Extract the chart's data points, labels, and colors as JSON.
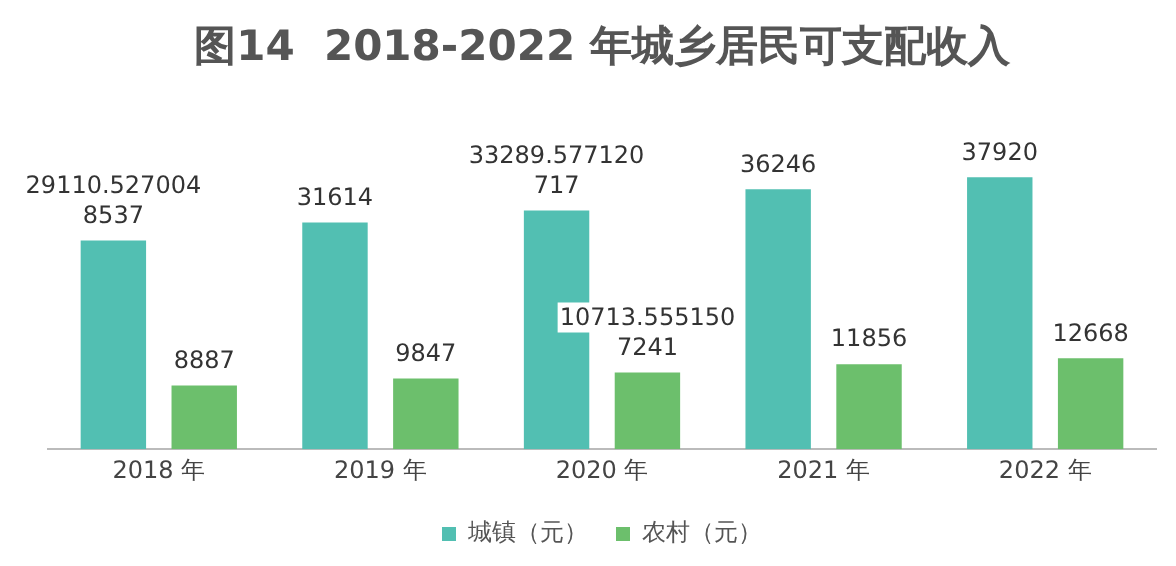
{
  "chart_data": {
    "type": "bar",
    "title": "图14  2018-2022 年城乡居民可支配收入",
    "categories": [
      "2018 年",
      "2019 年",
      "2020 年",
      "2021 年",
      "2022 年"
    ],
    "series": [
      {
        "name": "城镇（元）",
        "color": "#52bfb2",
        "values": [
          29110.5270048537,
          31614,
          33289.577120717,
          36246,
          37920
        ]
      },
      {
        "name": "农村（元）",
        "color": "#6cbf6c",
        "values": [
          8887,
          9847,
          10713.5551507241,
          11856,
          12668
        ]
      }
    ],
    "data_labels": true,
    "legend": "bottom",
    "grid": false
  }
}
